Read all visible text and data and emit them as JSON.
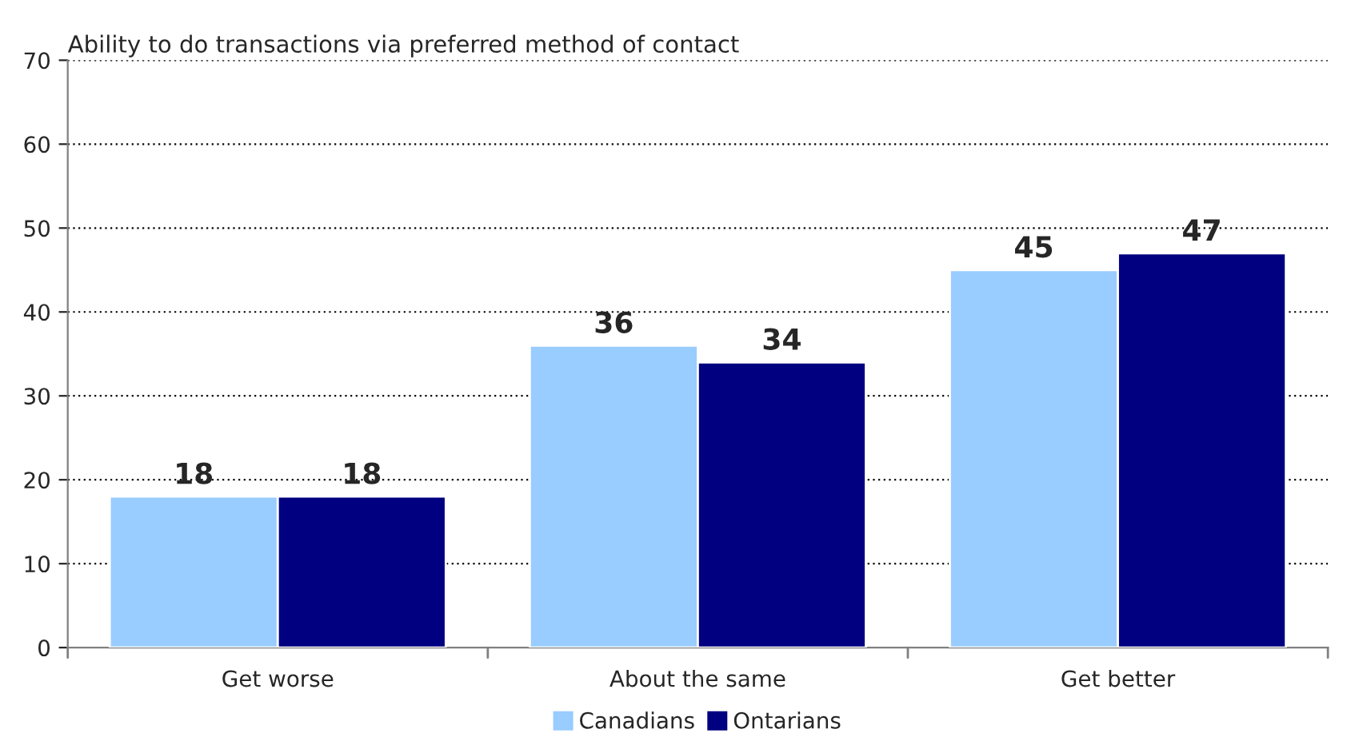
{
  "chart_data": {
    "type": "bar",
    "title": "Ability to do transactions via preferred method of contact",
    "categories": [
      "Get worse",
      "About the same",
      "Get better"
    ],
    "series": [
      {
        "name": "Canadians",
        "color": "#99ccff",
        "values": [
          18,
          36,
          45
        ]
      },
      {
        "name": "Ontarians",
        "color": "#000080",
        "values": [
          18,
          34,
          47
        ]
      }
    ],
    "ylim": [
      0,
      70
    ],
    "yticks": [
      0,
      10,
      20,
      30,
      40,
      50,
      60,
      70
    ],
    "grid": "y",
    "legend": "bottom",
    "data_labels": true
  }
}
